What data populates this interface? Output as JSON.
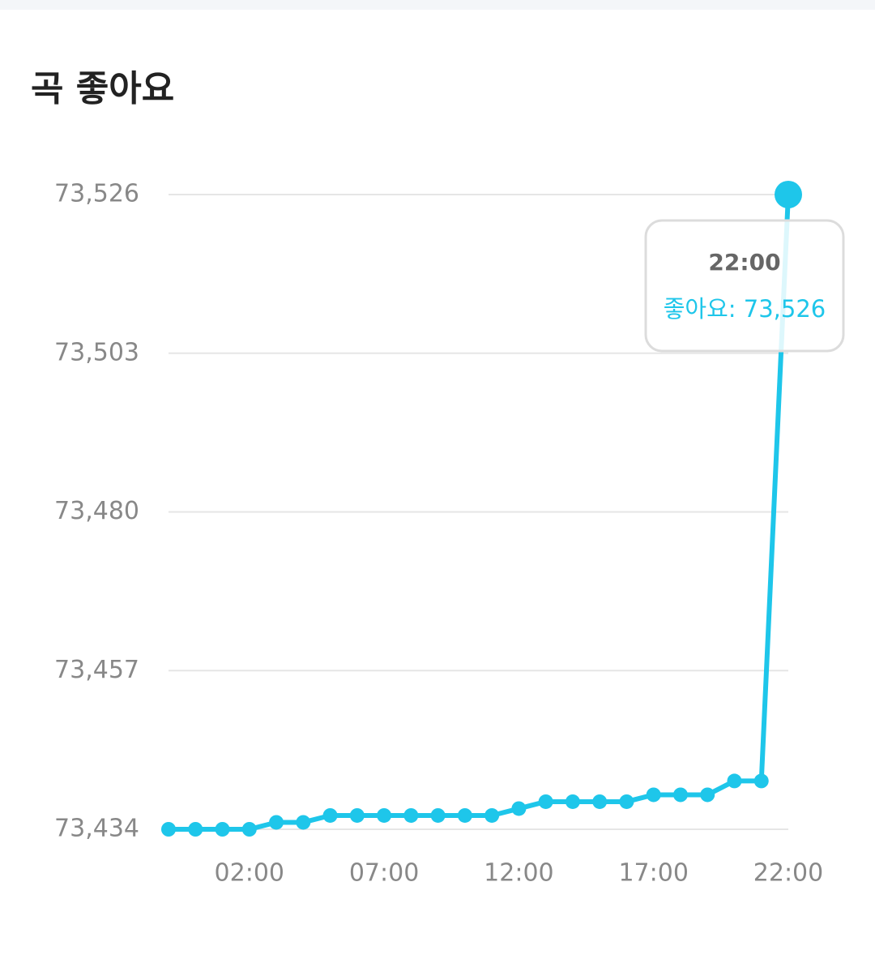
{
  "chart_data": {
    "type": "line",
    "title": "곡 좋아요",
    "categories": [
      null,
      null,
      null,
      "02:00",
      null,
      null,
      null,
      null,
      "07:00",
      null,
      null,
      null,
      null,
      "12:00",
      null,
      null,
      null,
      null,
      "17:00",
      null,
      null,
      null,
      null,
      "22:00"
    ],
    "series": [
      {
        "color": "#1ec6ea",
        "values": [
          73434,
          73434,
          73434,
          73434,
          73435,
          73435,
          73436,
          73436,
          73436,
          73436,
          73436,
          73436,
          73436,
          73437,
          73438,
          73438,
          73438,
          73438,
          73439,
          73439,
          73439,
          73441,
          73441,
          73526
        ]
      }
    ],
    "ylim": [
      73434,
      73526
    ],
    "yticks": [
      {
        "value": 73434,
        "label": "73,434"
      },
      {
        "value": 73457,
        "label": "73,457"
      },
      {
        "value": 73480,
        "label": "73,480"
      },
      {
        "value": 73503,
        "label": "73,503"
      },
      {
        "value": 73526,
        "label": "73,526"
      }
    ],
    "grid": true,
    "tooltip": {
      "index": 23,
      "text": "좋아요: 73,526"
    }
  }
}
